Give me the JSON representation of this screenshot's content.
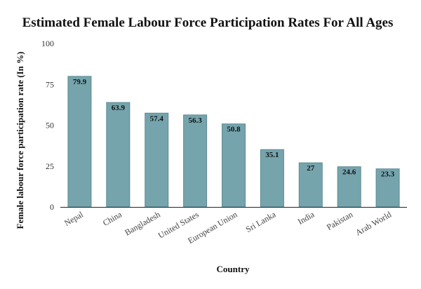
{
  "chart_data": {
    "type": "bar",
    "title": "Estimated Female Labour Force Participation Rates For All Ages",
    "xlabel": "Country",
    "ylabel": "Female labour force participation rate (In %)",
    "categories": [
      "Nepal",
      "China",
      "Bangladesh",
      "United States",
      "European Union",
      "Sri Lanka",
      "India",
      "Pakistan",
      "Arab World"
    ],
    "values": [
      79.9,
      63.9,
      57.4,
      56.3,
      50.8,
      35.1,
      27,
      24.6,
      23.3
    ],
    "value_labels": [
      "79.9",
      "63.9",
      "57.4",
      "56.3",
      "50.8",
      "35.1",
      "27",
      "24.6",
      "23.3"
    ],
    "ylim": [
      0,
      100
    ],
    "yticks": [
      "0",
      "25",
      "50",
      "75",
      "100"
    ],
    "grid": false,
    "legend": "none",
    "bar_color": "#75a4ad",
    "bar_edge_color": "#5d8a93"
  }
}
